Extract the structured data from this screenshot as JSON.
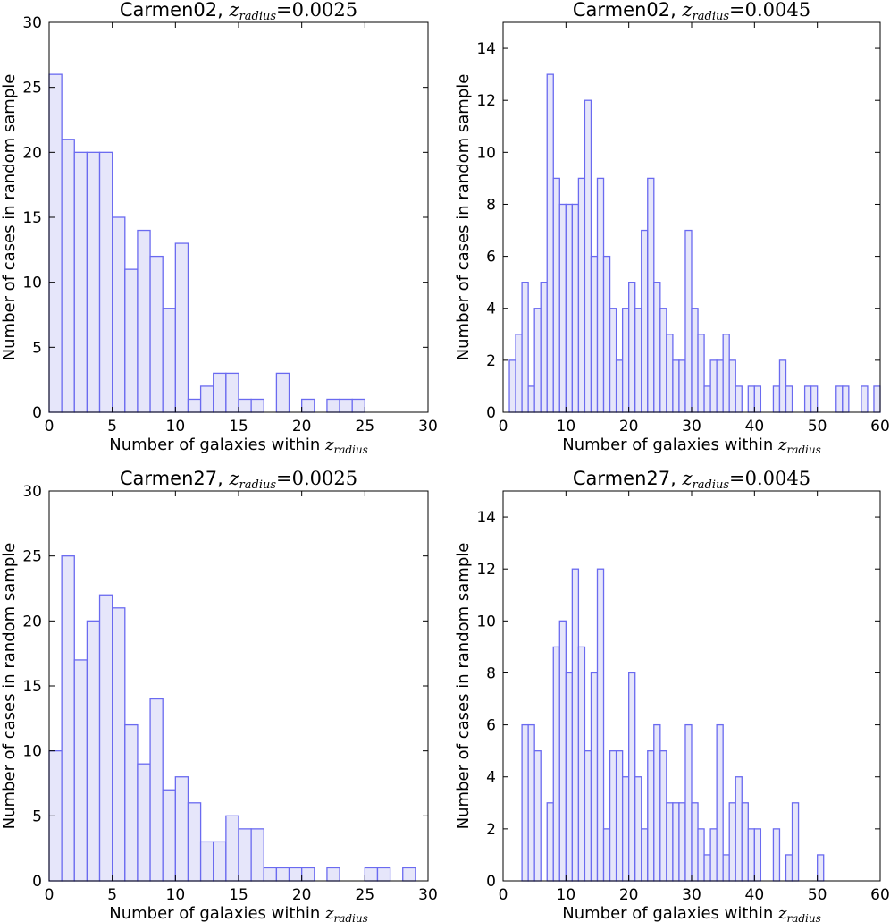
{
  "chart_data": [
    {
      "type": "bar",
      "title_name": "Carmen02,",
      "title_z": "z",
      "title_sub": "radius",
      "title_eq": "=0.0025",
      "xlabel": "Number of galaxies within",
      "xlabel_z": "z",
      "xlabel_sub": "radius",
      "ylabel": "Number of cases in random sample",
      "xlim": [
        0,
        30
      ],
      "ylim": [
        0,
        30
      ],
      "xticks": [
        "0",
        "5",
        "10",
        "15",
        "20",
        "25",
        "30"
      ],
      "yticks": [
        "0",
        "5",
        "10",
        "15",
        "20",
        "25",
        "30"
      ],
      "bin_width": 1,
      "x": [
        0,
        1,
        2,
        3,
        4,
        5,
        6,
        7,
        8,
        9,
        10,
        11,
        12,
        13,
        14,
        15,
        16,
        18,
        20,
        22,
        23,
        24
      ],
      "values": [
        26,
        21,
        20,
        20,
        20,
        15,
        11,
        14,
        12,
        8,
        13,
        1,
        2,
        3,
        3,
        1,
        1,
        3,
        1,
        1,
        1,
        1
      ]
    },
    {
      "type": "bar",
      "title_name": "Carmen02,",
      "title_z": "z",
      "title_sub": "radius",
      "title_eq": "=0.0045",
      "xlabel": "Number of galaxies within",
      "xlabel_z": "z",
      "xlabel_sub": "radius",
      "ylabel": "Number of cases in random sample",
      "xlim": [
        0,
        60
      ],
      "ylim": [
        0,
        15
      ],
      "xticks": [
        "0",
        "10",
        "20",
        "30",
        "40",
        "50",
        "60"
      ],
      "yticks": [
        "0",
        "2",
        "4",
        "6",
        "8",
        "10",
        "12",
        "14"
      ],
      "bin_width": 1,
      "x": [
        1,
        2,
        3,
        4,
        5,
        6,
        7,
        8,
        9,
        10,
        11,
        12,
        13,
        14,
        15,
        16,
        17,
        18,
        19,
        20,
        21,
        22,
        23,
        24,
        25,
        26,
        27,
        28,
        29,
        30,
        31,
        32,
        33,
        34,
        35,
        36,
        37,
        39,
        40,
        43,
        44,
        45,
        48,
        49,
        53,
        54,
        57,
        59
      ],
      "values": [
        2,
        3,
        5,
        1,
        4,
        5,
        13,
        9,
        8,
        8,
        8,
        9,
        12,
        6,
        9,
        6,
        4,
        2,
        4,
        5,
        4,
        7,
        9,
        5,
        4,
        3,
        2,
        2,
        7,
        4,
        3,
        1,
        2,
        2,
        3,
        2,
        1,
        1,
        1,
        1,
        2,
        1,
        1,
        1,
        1,
        1,
        1,
        1
      ]
    },
    {
      "type": "bar",
      "title_name": "Carmen27,",
      "title_z": "z",
      "title_sub": "radius",
      "title_eq": "=0.0025",
      "xlabel": "Number of galaxies within",
      "xlabel_z": "z",
      "xlabel_sub": "radius",
      "ylabel": "Number of cases in random sample",
      "xlim": [
        0,
        30
      ],
      "ylim": [
        0,
        30
      ],
      "xticks": [
        "0",
        "5",
        "10",
        "15",
        "20",
        "25",
        "30"
      ],
      "yticks": [
        "0",
        "5",
        "10",
        "15",
        "20",
        "25",
        "30"
      ],
      "bin_width": 1,
      "x": [
        0,
        1,
        2,
        3,
        4,
        5,
        6,
        7,
        8,
        9,
        10,
        11,
        12,
        13,
        14,
        15,
        16,
        17,
        18,
        19,
        20,
        22,
        25,
        26,
        28
      ],
      "values": [
        10,
        25,
        17,
        20,
        22,
        21,
        12,
        9,
        14,
        7,
        8,
        6,
        3,
        3,
        5,
        4,
        4,
        1,
        1,
        1,
        1,
        1,
        1,
        1,
        1
      ]
    },
    {
      "type": "bar",
      "title_name": "Carmen27,",
      "title_z": "z",
      "title_sub": "radius",
      "title_eq": "=0.0045",
      "xlabel": "Number of galaxies within",
      "xlabel_z": "z",
      "xlabel_sub": "radius",
      "ylabel": "Number of cases in random sample",
      "xlim": [
        0,
        60
      ],
      "ylim": [
        0,
        15
      ],
      "xticks": [
        "0",
        "10",
        "20",
        "30",
        "40",
        "50",
        "60"
      ],
      "yticks": [
        "0",
        "2",
        "4",
        "6",
        "8",
        "10",
        "12",
        "14"
      ],
      "bin_width": 1,
      "x": [
        3,
        4,
        5,
        7,
        8,
        9,
        10,
        11,
        12,
        13,
        14,
        15,
        16,
        17,
        18,
        19,
        20,
        21,
        22,
        23,
        24,
        25,
        26,
        27,
        28,
        29,
        30,
        31,
        32,
        33,
        34,
        35,
        36,
        37,
        38,
        39,
        40,
        43,
        45,
        46,
        50
      ],
      "values": [
        6,
        6,
        5,
        3,
        9,
        10,
        8,
        12,
        9,
        5,
        8,
        12,
        2,
        5,
        5,
        4,
        8,
        4,
        2,
        5,
        6,
        5,
        3,
        3,
        3,
        6,
        3,
        2,
        1,
        2,
        6,
        1,
        3,
        4,
        3,
        2,
        2,
        2,
        1,
        3,
        1
      ]
    }
  ]
}
